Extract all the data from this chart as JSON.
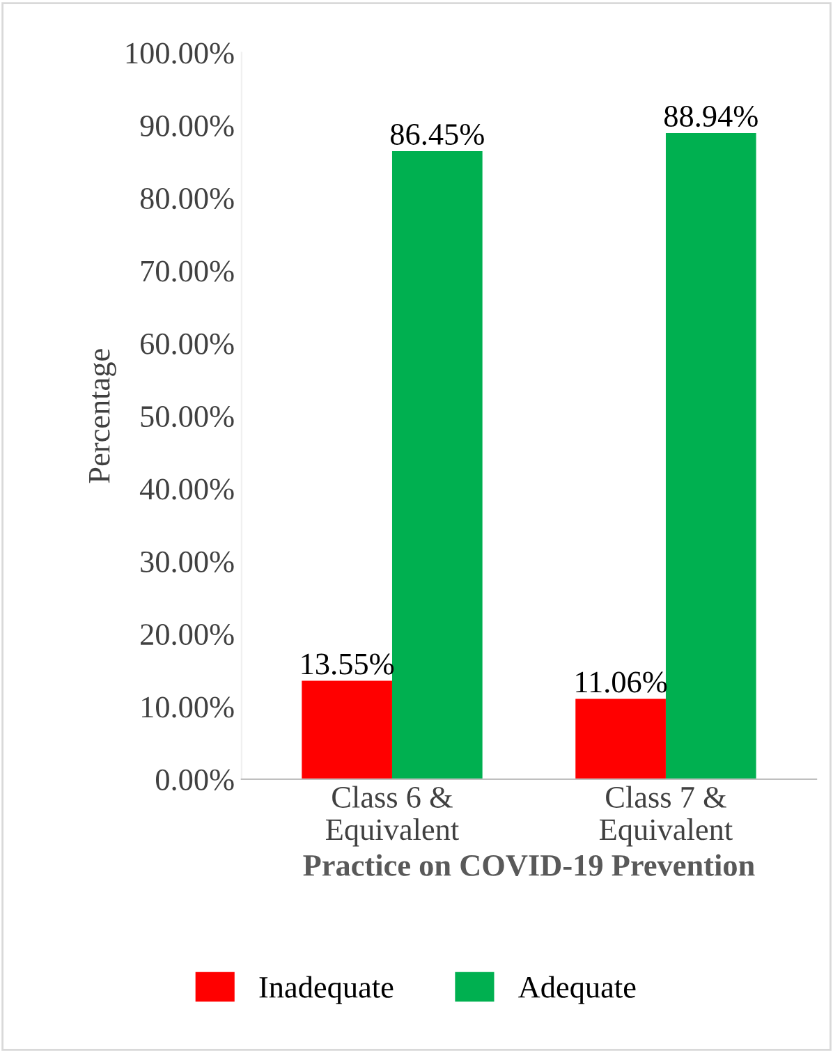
{
  "chart_data": {
    "type": "bar",
    "xlabel": "Practice on COVID-19 Prevention",
    "ylabel": "Percentage",
    "categories": [
      "Class 6 &\nEquivalent",
      "Class 7 &\nEquivalent"
    ],
    "series": [
      {
        "name": "Inadequate",
        "color": "#ff0000",
        "values": [
          13.55,
          11.06
        ],
        "value_labels": [
          "13.55%",
          "11.06%"
        ]
      },
      {
        "name": "Adequate",
        "color": "#00b050",
        "values": [
          86.45,
          88.94
        ],
        "value_labels": [
          "86.45%",
          "88.94%"
        ]
      }
    ],
    "ylim": [
      0,
      100
    ],
    "yticks": [
      {
        "value": 0,
        "label": "0.00%"
      },
      {
        "value": 10,
        "label": "10.00%"
      },
      {
        "value": 20,
        "label": "20.00%"
      },
      {
        "value": 30,
        "label": "30.00%"
      },
      {
        "value": 40,
        "label": "40.00%"
      },
      {
        "value": 50,
        "label": "50.00%"
      },
      {
        "value": 60,
        "label": "60.00%"
      },
      {
        "value": 70,
        "label": "70.00%"
      },
      {
        "value": 80,
        "label": "80.00%"
      },
      {
        "value": 90,
        "label": "90.00%"
      },
      {
        "value": 100,
        "label": "100.00%"
      }
    ],
    "grid": false,
    "legend": "bottom"
  }
}
